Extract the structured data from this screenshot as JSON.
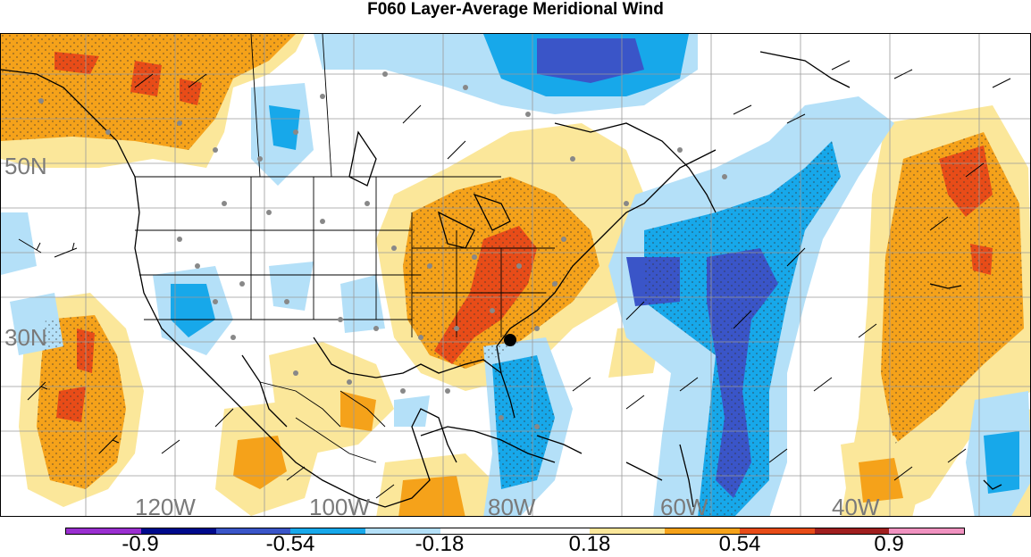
{
  "title": "F060 Layer-Average Meridional Wind",
  "map": {
    "latitude_labels": [
      "50N",
      "30N"
    ],
    "longitude_labels": [
      "120W",
      "100W",
      "80W",
      "60W",
      "40W"
    ],
    "colors": {
      "land_outline": "#000000",
      "grid": "#9a9a9a",
      "station_dots": "#888888",
      "marker": "#000000"
    }
  },
  "colorbar": {
    "labels": [
      "-0.9",
      "-0.54",
      "-0.18",
      "0.18",
      "0.54",
      "0.9"
    ],
    "colors": [
      "#9a2fd0",
      "#000a8c",
      "#3a55c8",
      "#17a8ea",
      "#b4e0f8",
      "#ffffff",
      "#ffffff",
      "#fbe79a",
      "#f5a21a",
      "#e84c18",
      "#a01f1f",
      "#f092c0"
    ]
  }
}
